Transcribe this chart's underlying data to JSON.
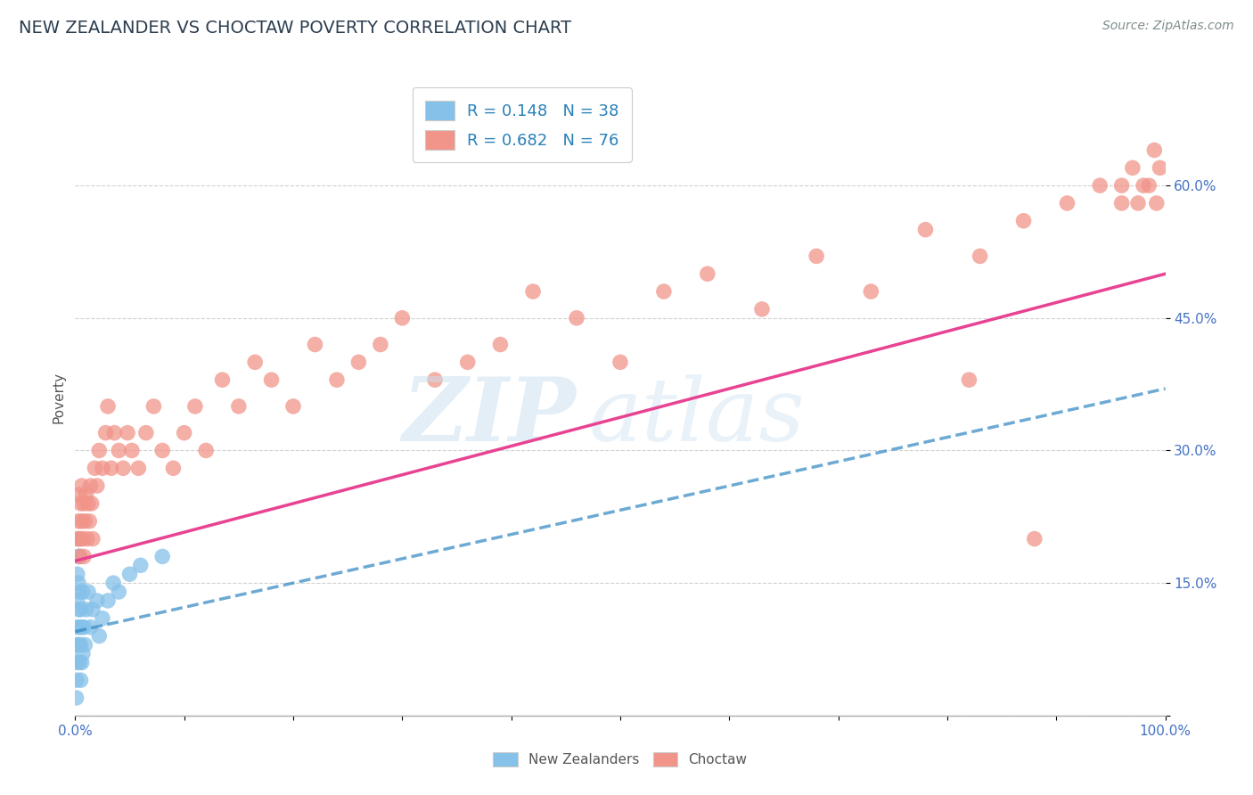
{
  "title": "NEW ZEALANDER VS CHOCTAW POVERTY CORRELATION CHART",
  "source": "Source: ZipAtlas.com",
  "ylabel": "Poverty",
  "xlim": [
    0.0,
    1.0
  ],
  "ylim": [
    0.0,
    0.72
  ],
  "x_ticks": [
    0.0,
    0.1,
    0.2,
    0.3,
    0.4,
    0.5,
    0.6,
    0.7,
    0.8,
    0.9,
    1.0
  ],
  "y_ticks": [
    0.0,
    0.15,
    0.3,
    0.45,
    0.6
  ],
  "background_color": "#ffffff",
  "grid_color": "#cccccc",
  "blue_color": "#85c1e9",
  "pink_color": "#f1948a",
  "blue_line_color": "#2e86c1",
  "pink_line_color": "#e84393",
  "gray_dash_color": "#aabbcc",
  "nz_x": [
    0.001,
    0.001,
    0.001,
    0.002,
    0.002,
    0.002,
    0.002,
    0.003,
    0.003,
    0.003,
    0.003,
    0.003,
    0.004,
    0.004,
    0.004,
    0.004,
    0.005,
    0.005,
    0.005,
    0.006,
    0.006,
    0.007,
    0.007,
    0.008,
    0.009,
    0.01,
    0.012,
    0.014,
    0.016,
    0.02,
    0.022,
    0.025,
    0.03,
    0.035,
    0.04,
    0.05,
    0.06,
    0.08
  ],
  "nz_y": [
    0.02,
    0.04,
    0.06,
    0.08,
    0.1,
    0.13,
    0.16,
    0.18,
    0.2,
    0.15,
    0.12,
    0.08,
    0.06,
    0.1,
    0.14,
    0.18,
    0.04,
    0.08,
    0.12,
    0.06,
    0.1,
    0.14,
    0.07,
    0.1,
    0.08,
    0.12,
    0.14,
    0.1,
    0.12,
    0.13,
    0.09,
    0.11,
    0.13,
    0.15,
    0.14,
    0.16,
    0.17,
    0.18
  ],
  "ch_x": [
    0.002,
    0.003,
    0.004,
    0.004,
    0.005,
    0.005,
    0.006,
    0.006,
    0.007,
    0.008,
    0.008,
    0.009,
    0.01,
    0.011,
    0.012,
    0.013,
    0.014,
    0.015,
    0.016,
    0.018,
    0.02,
    0.022,
    0.025,
    0.028,
    0.03,
    0.033,
    0.036,
    0.04,
    0.044,
    0.048,
    0.052,
    0.058,
    0.065,
    0.072,
    0.08,
    0.09,
    0.1,
    0.11,
    0.12,
    0.135,
    0.15,
    0.165,
    0.18,
    0.2,
    0.22,
    0.24,
    0.26,
    0.28,
    0.3,
    0.33,
    0.36,
    0.39,
    0.42,
    0.46,
    0.5,
    0.54,
    0.58,
    0.63,
    0.68,
    0.73,
    0.78,
    0.83,
    0.87,
    0.91,
    0.94,
    0.96,
    0.97,
    0.98,
    0.99,
    0.995,
    0.82,
    0.88,
    0.96,
    0.975,
    0.985,
    0.992
  ],
  "ch_y": [
    0.2,
    0.22,
    0.18,
    0.25,
    0.2,
    0.24,
    0.22,
    0.26,
    0.2,
    0.24,
    0.18,
    0.22,
    0.25,
    0.2,
    0.24,
    0.22,
    0.26,
    0.24,
    0.2,
    0.28,
    0.26,
    0.3,
    0.28,
    0.32,
    0.35,
    0.28,
    0.32,
    0.3,
    0.28,
    0.32,
    0.3,
    0.28,
    0.32,
    0.35,
    0.3,
    0.28,
    0.32,
    0.35,
    0.3,
    0.38,
    0.35,
    0.4,
    0.38,
    0.35,
    0.42,
    0.38,
    0.4,
    0.42,
    0.45,
    0.38,
    0.4,
    0.42,
    0.48,
    0.45,
    0.4,
    0.48,
    0.5,
    0.46,
    0.52,
    0.48,
    0.55,
    0.52,
    0.56,
    0.58,
    0.6,
    0.58,
    0.62,
    0.6,
    0.64,
    0.62,
    0.38,
    0.2,
    0.6,
    0.58,
    0.6,
    0.58
  ],
  "nz_line_x0": 0.0,
  "nz_line_x1": 1.0,
  "nz_line_y0": 0.095,
  "nz_line_y1": 0.37,
  "ch_line_x0": 0.0,
  "ch_line_x1": 1.0,
  "ch_line_y0": 0.175,
  "ch_line_y1": 0.5,
  "legend1_label": "R = 0.148   N = 38",
  "legend2_label": "R = 0.682   N = 76"
}
